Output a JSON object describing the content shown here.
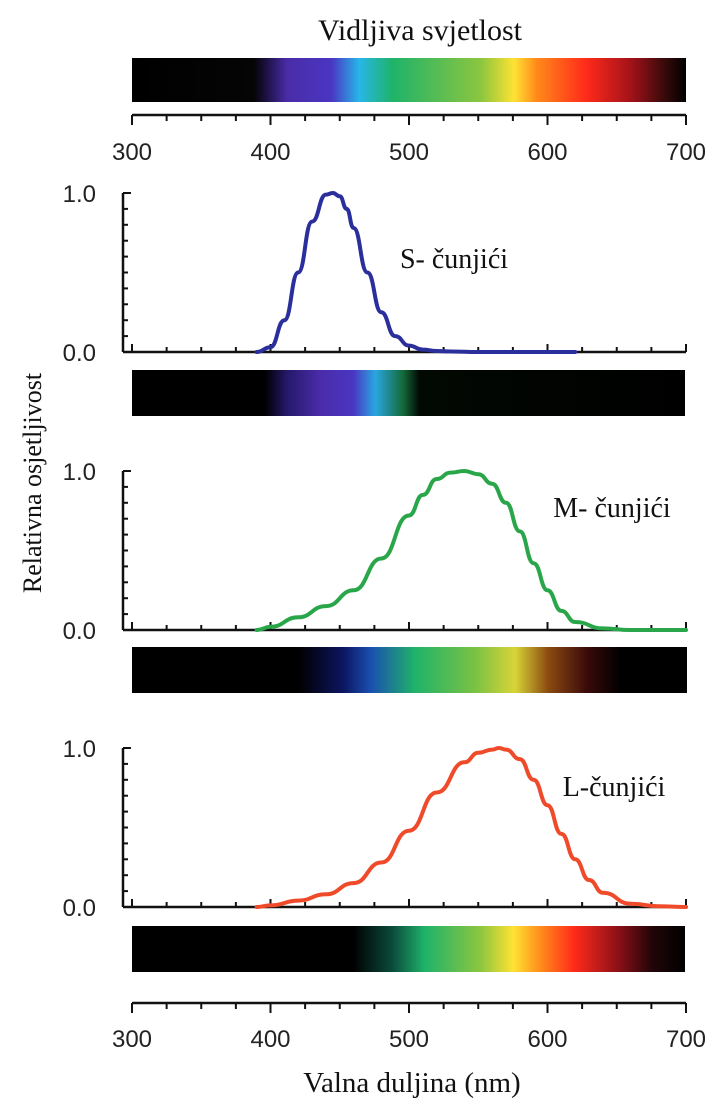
{
  "title": "Vidljiva svjetlost",
  "chart_data": {
    "type": "line",
    "xlabel": "Valna duljina (nm)",
    "ylabel": "Relativna osjetljivost",
    "xlim": [
      300,
      700
    ],
    "x_ticks": [
      "300",
      "400",
      "500",
      "600",
      "700"
    ],
    "y_ticks": [
      "0.0",
      "1.0"
    ],
    "ylim": [
      0,
      1
    ],
    "grid": false,
    "series": [
      {
        "name": "S- čunjići",
        "color": "#2b2f9c",
        "x": [
          390,
          400,
          410,
          420,
          430,
          440,
          445,
          450,
          455,
          460,
          470,
          480,
          490,
          500,
          510,
          520,
          530,
          550,
          580,
          620
        ],
        "y": [
          0.0,
          0.03,
          0.2,
          0.5,
          0.82,
          0.99,
          1.0,
          0.98,
          0.9,
          0.78,
          0.5,
          0.25,
          0.1,
          0.04,
          0.015,
          0.006,
          0.003,
          0.0,
          0.0,
          0.0
        ]
      },
      {
        "name": "M- čunjići",
        "color": "#2aa64a",
        "x": [
          390,
          400,
          420,
          440,
          460,
          480,
          500,
          510,
          520,
          530,
          540,
          550,
          560,
          570,
          580,
          590,
          600,
          610,
          620,
          640,
          660,
          700
        ],
        "y": [
          0.0,
          0.02,
          0.08,
          0.15,
          0.25,
          0.45,
          0.72,
          0.85,
          0.95,
          0.99,
          1.0,
          0.98,
          0.92,
          0.8,
          0.62,
          0.42,
          0.25,
          0.12,
          0.05,
          0.01,
          0.0,
          0.0
        ]
      },
      {
        "name": "L-čunjići",
        "color": "#ef4a2a",
        "x": [
          390,
          400,
          420,
          440,
          460,
          480,
          500,
          520,
          540,
          550,
          560,
          565,
          570,
          580,
          590,
          600,
          610,
          620,
          630,
          640,
          660,
          680,
          700
        ],
        "y": [
          0.0,
          0.01,
          0.04,
          0.08,
          0.15,
          0.28,
          0.48,
          0.72,
          0.91,
          0.97,
          0.99,
          1.0,
          0.99,
          0.93,
          0.8,
          0.64,
          0.46,
          0.3,
          0.17,
          0.09,
          0.02,
          0.005,
          0.0
        ]
      }
    ]
  }
}
